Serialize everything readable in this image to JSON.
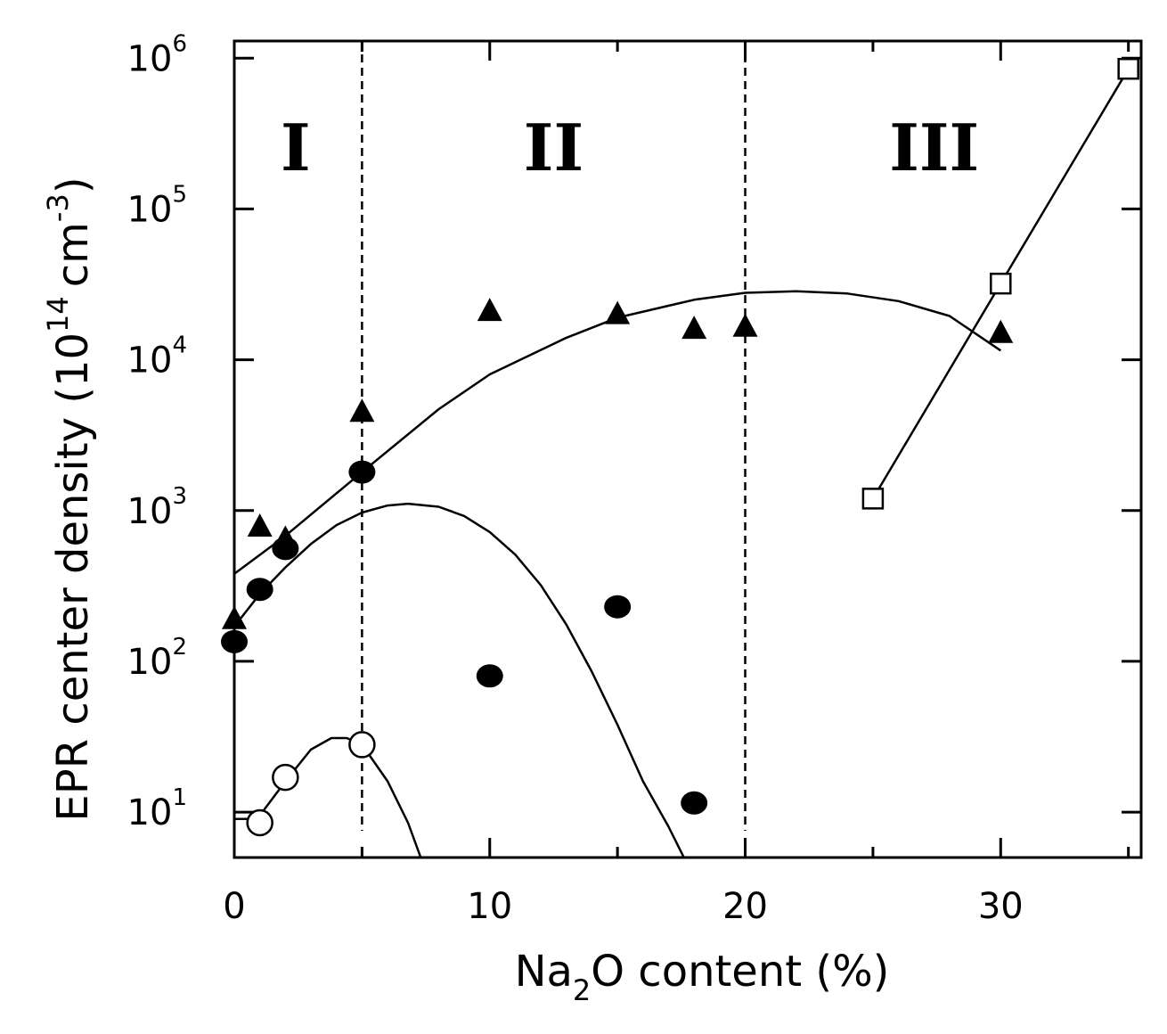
{
  "chart_data": {
    "type": "scatter",
    "title": "",
    "xlabel": {
      "pre": "Na",
      "sub": "2",
      "post": "O content (%)"
    },
    "ylabel": {
      "pre": "EPR center density (10",
      "sup1": "14",
      "mid": "cm",
      "sup2": "-3",
      "post": ")"
    },
    "x_range": [
      0,
      35.5
    ],
    "y_scale": "log",
    "y_range": [
      5,
      1300000
    ],
    "x_ticks": [
      0,
      10,
      20,
      30
    ],
    "x_tick_labels": [
      "0",
      "10",
      "20",
      "30"
    ],
    "x_minor_ticks": [
      5,
      15,
      25,
      35
    ],
    "y_ticks": [
      10,
      100,
      1000,
      10000,
      100000,
      1000000
    ],
    "y_tick_labels": [
      {
        "base": "10",
        "exp": "1"
      },
      {
        "base": "10",
        "exp": "2"
      },
      {
        "base": "10",
        "exp": "3"
      },
      {
        "base": "10",
        "exp": "4"
      },
      {
        "base": "10",
        "exp": "5"
      },
      {
        "base": "10",
        "exp": "6"
      }
    ],
    "regions": [
      {
        "label": "I",
        "x_center": 2.4,
        "y": 250000
      },
      {
        "label": "II",
        "x_center": 12.5,
        "y": 250000
      },
      {
        "label": "III",
        "x_center": 27.4,
        "y": 250000
      }
    ],
    "region_boundaries": [
      5,
      20
    ],
    "grid": false,
    "legend": "none",
    "series": [
      {
        "marker": "filled-triangle",
        "points": [
          [
            0,
            190
          ],
          [
            1,
            780
          ],
          [
            2,
            650
          ],
          [
            5,
            4500
          ],
          [
            10,
            21000
          ],
          [
            15,
            20000
          ],
          [
            18,
            16000
          ],
          [
            20,
            16500
          ],
          [
            30,
            15000
          ]
        ]
      },
      {
        "marker": "filled-circle",
        "points": [
          [
            0,
            135
          ],
          [
            1,
            300
          ],
          [
            2,
            560
          ],
          [
            5,
            1800
          ],
          [
            10,
            80
          ],
          [
            15,
            230
          ],
          [
            18,
            11.5
          ]
        ]
      },
      {
        "marker": "open-circle",
        "points": [
          [
            1,
            8.5
          ],
          [
            2,
            17
          ],
          [
            5,
            28
          ]
        ]
      },
      {
        "marker": "open-square",
        "points": [
          [
            25,
            1200
          ],
          [
            30,
            32000
          ],
          [
            35,
            850000
          ]
        ]
      }
    ],
    "curves": [
      {
        "marker": "filled-triangle",
        "points": [
          [
            0,
            380
          ],
          [
            2,
            680
          ],
          [
            5,
            1800
          ],
          [
            8,
            4700
          ],
          [
            10,
            8000
          ],
          [
            13,
            14000
          ],
          [
            15,
            19000
          ],
          [
            18,
            25000
          ],
          [
            20,
            27800
          ],
          [
            22,
            28500
          ],
          [
            24,
            27500
          ],
          [
            26,
            24500
          ],
          [
            28,
            19500
          ],
          [
            30,
            11500
          ]
        ]
      },
      {
        "marker": "filled-circle",
        "points": [
          [
            0,
            170
          ],
          [
            1,
            280
          ],
          [
            2,
            420
          ],
          [
            3,
            600
          ],
          [
            4,
            800
          ],
          [
            5,
            970
          ],
          [
            6,
            1080
          ],
          [
            6.8,
            1110
          ],
          [
            8,
            1060
          ],
          [
            9,
            920
          ],
          [
            10,
            720
          ],
          [
            11,
            510
          ],
          [
            12,
            320
          ],
          [
            13,
            175
          ],
          [
            14,
            85
          ],
          [
            15,
            38
          ],
          [
            16,
            16
          ],
          [
            17,
            8
          ],
          [
            17.6,
            5
          ]
        ]
      },
      {
        "marker": "open-circle",
        "points": [
          [
            0,
            9
          ],
          [
            0.6,
            9
          ],
          [
            1,
            9.5
          ],
          [
            2,
            16
          ],
          [
            3,
            26
          ],
          [
            3.8,
            31
          ],
          [
            4.4,
            31
          ],
          [
            5,
            28
          ],
          [
            6,
            16
          ],
          [
            6.8,
            8.5
          ],
          [
            7.3,
            5
          ]
        ]
      },
      {
        "marker": "open-square",
        "points": [
          [
            25,
            1200
          ],
          [
            30,
            32000
          ],
          [
            35,
            850000
          ]
        ]
      }
    ]
  }
}
